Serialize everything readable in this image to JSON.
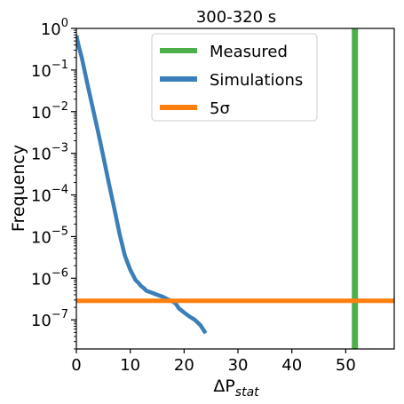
{
  "chart_data": {
    "type": "line",
    "title": "300-320 s",
    "xlabel": "ΔP_stat",
    "xlabel_main": "ΔP",
    "xlabel_sub": "stat",
    "ylabel": "Frequency",
    "xlim": [
      0,
      59
    ],
    "ylim": [
      2e-08,
      1
    ],
    "yscale": "log",
    "grid": false,
    "legend_position": "top-center",
    "x_ticks": [
      0,
      10,
      20,
      30,
      40,
      50
    ],
    "x_tick_labels": [
      "0",
      "10",
      "20",
      "30",
      "40",
      "50"
    ],
    "y_ticks": [
      {
        "exp": 0,
        "base": "10",
        "sup": "0"
      },
      {
        "exp": -1,
        "base": "10",
        "sup": "−1"
      },
      {
        "exp": -2,
        "base": "10",
        "sup": "−2"
      },
      {
        "exp": -3,
        "base": "10",
        "sup": "−3"
      },
      {
        "exp": -4,
        "base": "10",
        "sup": "−4"
      },
      {
        "exp": -5,
        "base": "10",
        "sup": "−5"
      },
      {
        "exp": -6,
        "base": "10",
        "sup": "−6"
      },
      {
        "exp": -7,
        "base": "10",
        "sup": "−7"
      }
    ],
    "series": [
      {
        "name": "Measured",
        "kind": "vline",
        "x": 51.7,
        "color": "#4daf4a"
      },
      {
        "name": "Simulations",
        "kind": "line",
        "color": "#3a7fb9",
        "x": [
          0,
          0.5,
          1,
          2,
          3,
          4,
          5,
          6,
          7,
          8,
          9,
          10,
          10.5,
          11,
          11.5,
          12,
          12.5,
          13,
          14,
          15,
          16,
          17,
          18,
          18.5,
          19,
          20,
          21,
          22,
          23,
          24
        ],
        "y": [
          0.68,
          0.35,
          0.2,
          0.05,
          0.013,
          0.0034,
          0.00085,
          0.0002,
          5e-05,
          1.2e-05,
          3.5e-06,
          1.6e-06,
          1.2e-06,
          9e-07,
          7.8e-07,
          6.5e-07,
          5.8e-07,
          5e-07,
          4.5e-07,
          4e-07,
          3.6e-07,
          3.1e-07,
          2.7e-07,
          2.4e-07,
          1.9e-07,
          1.5e-07,
          1.2e-07,
          1e-07,
          7.5e-08,
          4.8e-08
        ]
      },
      {
        "name": "5σ",
        "kind": "hline",
        "y": 2.87e-07,
        "color": "#ff7f0e"
      }
    ]
  }
}
